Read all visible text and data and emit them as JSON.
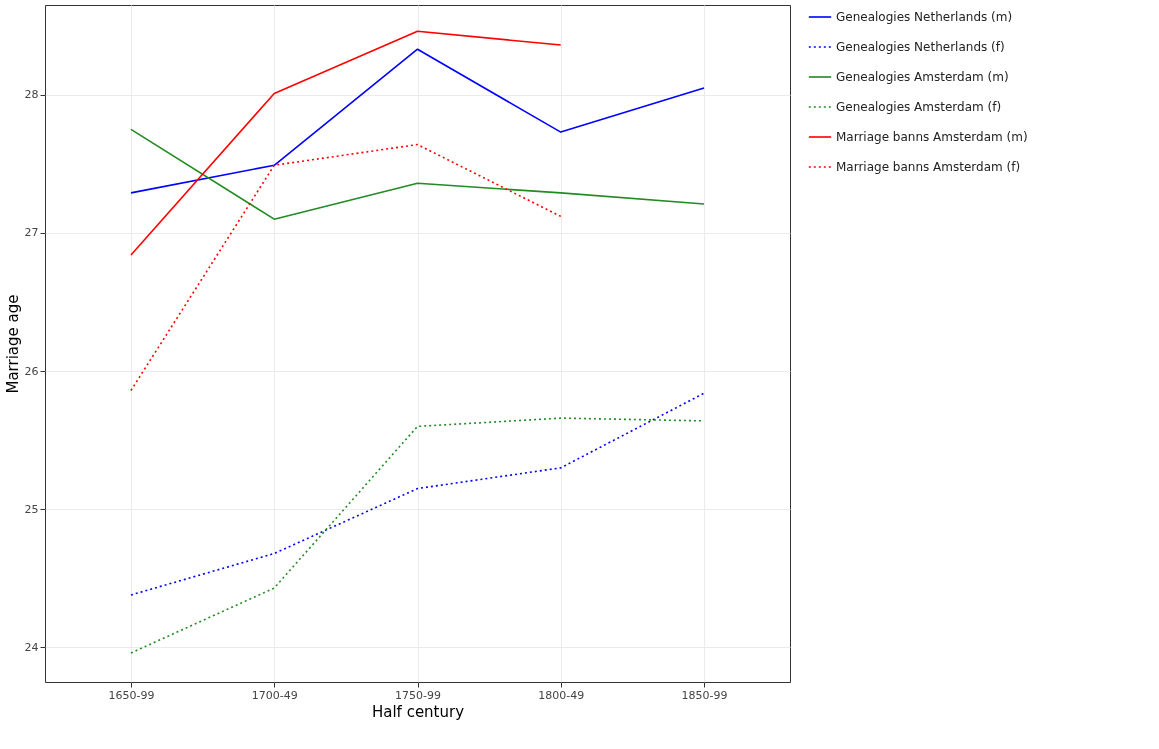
{
  "chart_data": {
    "type": "line",
    "xlabel": "Half century",
    "ylabel": "Marriage age",
    "categories": [
      "1650-99",
      "1700-49",
      "1750-99",
      "1800-49",
      "1850-99"
    ],
    "ylim": [
      23.75,
      28.65
    ],
    "yticks": [
      24,
      25,
      26,
      27,
      28
    ],
    "grid": true,
    "legend": "right",
    "series": [
      {
        "name": "Genealogies Netherlands (m)",
        "color": "#0000ff",
        "line_style": "solid",
        "values": [
          27.29,
          27.49,
          28.33,
          27.73,
          28.05
        ]
      },
      {
        "name": "Genealogies Netherlands (f)",
        "color": "#0000ff",
        "line_style": "dotted",
        "values": [
          24.38,
          24.68,
          25.15,
          25.3,
          25.84
        ]
      },
      {
        "name": "Genealogies Amsterdam (m)",
        "color": "#228b22",
        "line_style": "solid",
        "values": [
          27.75,
          27.1,
          27.36,
          27.29,
          27.21
        ]
      },
      {
        "name": "Genealogies Amsterdam (f)",
        "color": "#228b22",
        "line_style": "dotted",
        "values": [
          23.96,
          24.43,
          25.6,
          25.66,
          25.64
        ]
      },
      {
        "name": "Marriage banns Amsterdam (m)",
        "color": "#ff0000",
        "line_style": "solid",
        "values": [
          26.84,
          28.01,
          28.46,
          28.36,
          null
        ]
      },
      {
        "name": "Marriage banns Amsterdam (f)",
        "color": "#ff0000",
        "line_style": "dotted",
        "values": [
          25.86,
          27.49,
          27.64,
          27.12,
          null
        ]
      }
    ]
  }
}
